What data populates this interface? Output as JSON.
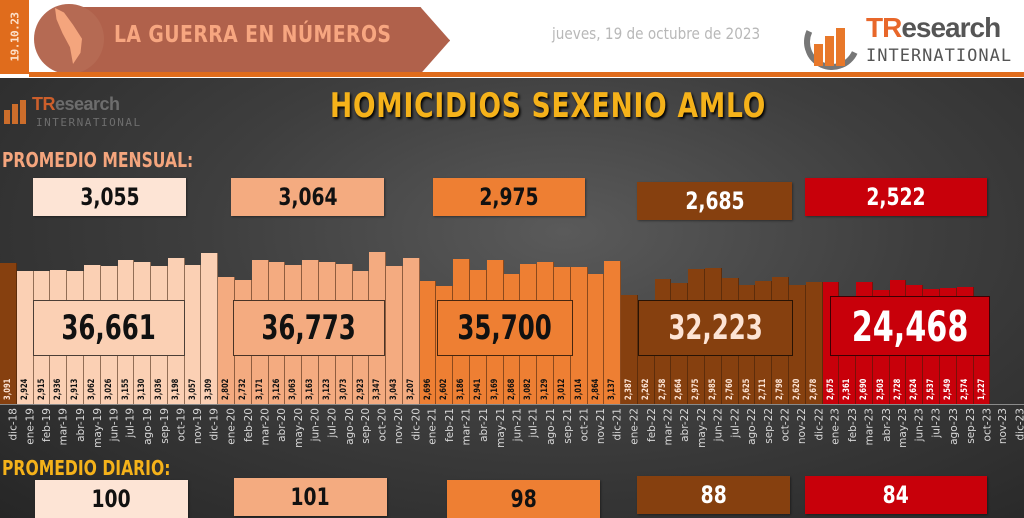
{
  "header": {
    "date_strip": "19.10.23",
    "banner_title": "LA GUERRA EN NÚMEROS",
    "date_text": "jueves, 19 de octubre de 2023",
    "logo": {
      "brand_accent": "TR",
      "brand_rest": "esearch",
      "sub": "INTERNATIONAL"
    }
  },
  "main": {
    "title": "HOMICIDIOS SEXENIO AMLO",
    "small_logo": {
      "brand_accent": "TR",
      "brand_rest": "esearch",
      "sub": "INTERNATIONAL"
    },
    "promedio_mensual_label": "PROMEDIO MENSUAL:",
    "promedio_diario_label": "PROMEDIO DIARIO:",
    "years": [
      {
        "year": "2019",
        "color": "#fbd0b4",
        "text_color": "#111111",
        "monthly_avg": "3,055",
        "daily_avg": "100",
        "total": "36,661",
        "avg_box_color": "#fde4d5"
      },
      {
        "year": "2020",
        "color": "#f4ab80",
        "text_color": "#111111",
        "monthly_avg": "3,064",
        "daily_avg": "101",
        "total": "36,773",
        "avg_box_color": "#f4ab80"
      },
      {
        "year": "2021",
        "color": "#ee7f33",
        "text_color": "#111111",
        "monthly_avg": "2,975",
        "daily_avg": "98",
        "total": "35,700",
        "avg_box_color": "#ee7f33"
      },
      {
        "year": "2022",
        "color": "#86400f",
        "text_color": "#fde4d5",
        "monthly_avg": "2,685",
        "daily_avg": "88",
        "total": "32,223",
        "avg_box_color": "#86400f"
      },
      {
        "year": "2023",
        "color": "#c8000a",
        "text_color": "#ffffff",
        "monthly_avg": "2,522",
        "daily_avg": "84",
        "total": "24,468",
        "avg_box_color": "#c8000a"
      }
    ],
    "dec18_color": "#86400f"
  },
  "chart_data": {
    "type": "bar",
    "title": "HOMICIDIOS SEXENIO AMLO",
    "xlabel": "",
    "ylabel": "",
    "categories": [
      "dic-18",
      "ene-19",
      "feb-19",
      "mar-19",
      "abr-19",
      "may-19",
      "jun-19",
      "jul-19",
      "ago-19",
      "sep-19",
      "oct-19",
      "nov-19",
      "dic-19",
      "ene-20",
      "feb-20",
      "mar-20",
      "abr-20",
      "may-20",
      "jun-20",
      "jul-20",
      "ago-20",
      "sep-20",
      "oct-20",
      "nov-20",
      "dic-20",
      "ene-21",
      "feb-21",
      "mar-21",
      "abr-21",
      "may-21",
      "jun-21",
      "jul-21",
      "ago-21",
      "sep-21",
      "oct-21",
      "nov-21",
      "dic-21",
      "ene-22",
      "feb-22",
      "mar-22",
      "abr-22",
      "may-22",
      "jun-22",
      "jul-22",
      "ago-22",
      "sep-22",
      "oct-22",
      "nov-22",
      "dic-22",
      "ene-23",
      "feb-23",
      "mar-23",
      "abr-23",
      "may-23",
      "jun-23",
      "jul-23",
      "ago-23",
      "sep-23",
      "oct-23",
      "nov-23",
      "dic-23"
    ],
    "values": [
      3091,
      2924,
      2915,
      2936,
      2913,
      3062,
      3026,
      3155,
      3130,
      3036,
      3198,
      3057,
      3309,
      2802,
      2732,
      3171,
      3126,
      3063,
      3163,
      3123,
      3073,
      2923,
      3347,
      3043,
      3207,
      2696,
      2602,
      3186,
      2941,
      3169,
      2868,
      3082,
      3129,
      3012,
      3014,
      2864,
      3137,
      2387,
      2262,
      2758,
      2664,
      2975,
      2985,
      2760,
      2625,
      2711,
      2798,
      2620,
      2678,
      2675,
      2361,
      2690,
      2503,
      2728,
      2624,
      2537,
      2549,
      2574,
      1227,
      null,
      null
    ],
    "value_labels": [
      "3,091",
      "2,924",
      "2,915",
      "2,936",
      "2,913",
      "3,062",
      "3,026",
      "3,155",
      "3,130",
      "3,036",
      "3,198",
      "3,057",
      "3,309",
      "2,802",
      "2,732",
      "3,171",
      "3,126",
      "3,063",
      "3,163",
      "3,123",
      "3,073",
      "2,923",
      "3,347",
      "3,043",
      "3,207",
      "2,696",
      "2,602",
      "3,186",
      "2,941",
      "3,169",
      "2,868",
      "3,082",
      "3,129",
      "3,012",
      "3,014",
      "2,864",
      "3,137",
      "2,387",
      "2,262",
      "2,758",
      "2,664",
      "2,975",
      "2,985",
      "2,760",
      "2,625",
      "2,711",
      "2,798",
      "2,620",
      "2,678",
      "2,675",
      "2,361",
      "2,690",
      "2,503",
      "2,728",
      "2,624",
      "2,537",
      "2,549",
      "2,574",
      "1,227",
      "",
      ""
    ],
    "year_totals": [
      {
        "year": "2019",
        "total": 36661,
        "monthly_avg": 3055,
        "daily_avg": 100
      },
      {
        "year": "2020",
        "total": 36773,
        "monthly_avg": 3064,
        "daily_avg": 101
      },
      {
        "year": "2021",
        "total": 35700,
        "monthly_avg": 2975,
        "daily_avg": 98
      },
      {
        "year": "2022",
        "total": 32223,
        "monthly_avg": 2685,
        "daily_avg": 88
      },
      {
        "year": "2023",
        "total": 24468,
        "monthly_avg": 2522,
        "daily_avg": 84
      }
    ],
    "grid": false,
    "legend": "none"
  }
}
